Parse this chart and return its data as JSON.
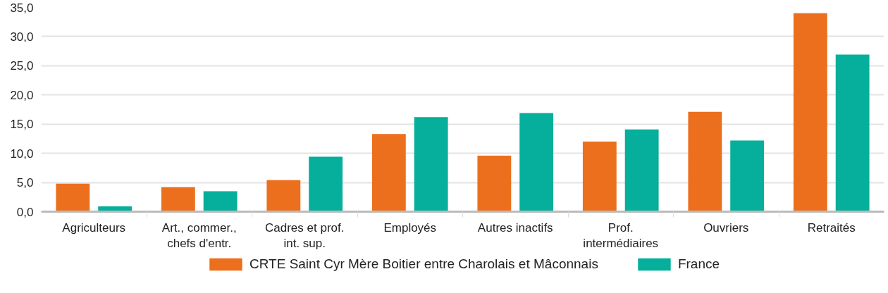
{
  "chart_data": {
    "type": "bar",
    "categories": [
      "Agriculteurs",
      "Art., commer., chefs d'entr.",
      "Cadres et prof. int. sup.",
      "Employés",
      "Autres inactifs",
      "Prof. intermédiaires",
      "Ouvriers",
      "Retraités"
    ],
    "series": [
      {
        "name": "CRTE Saint Cyr Mère Boitier entre Charolais et Mâconnais",
        "color": "#ec6f1d",
        "values": [
          4.8,
          4.2,
          5.4,
          13.3,
          9.6,
          12.0,
          17.1,
          34.0
        ]
      },
      {
        "name": "France",
        "color": "#05af9b",
        "values": [
          0.9,
          3.5,
          9.4,
          16.2,
          16.9,
          14.1,
          12.2,
          26.9
        ]
      }
    ],
    "ylim": [
      0,
      35
    ],
    "yticks": [
      {
        "value": 0,
        "label": "0,0"
      },
      {
        "value": 5,
        "label": "5,0"
      },
      {
        "value": 10,
        "label": "10,0"
      },
      {
        "value": 15,
        "label": "15,0"
      },
      {
        "value": 20,
        "label": "20,0"
      },
      {
        "value": 25,
        "label": "25,0"
      },
      {
        "value": 30,
        "label": "30,0"
      },
      {
        "value": 35,
        "label": "35,0"
      }
    ],
    "grid": "y",
    "legend": "bottom"
  }
}
